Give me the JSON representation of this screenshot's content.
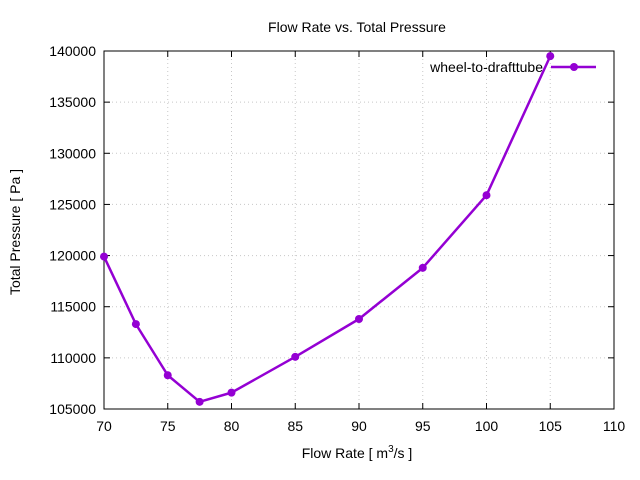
{
  "chart_data": {
    "type": "line",
    "title": "Flow Rate vs. Total Pressure",
    "xlabel": "Flow Rate [ m³/s ]",
    "xlabel_parts": {
      "prefix": "Flow Rate [ m",
      "sup": "3",
      "suffix": "/s ]"
    },
    "ylabel": "Total Pressure [ Pa ]",
    "xlim": [
      70,
      110
    ],
    "ylim": [
      105000,
      140000
    ],
    "xticks": [
      70,
      75,
      80,
      85,
      90,
      95,
      100,
      105,
      110
    ],
    "yticks": [
      105000,
      110000,
      115000,
      120000,
      125000,
      130000,
      135000,
      140000
    ],
    "grid": true,
    "legend_position": "top-right",
    "series": [
      {
        "name": "wheel-to-drafttube",
        "color": "#9400d3",
        "marker": "circle",
        "x": [
          70,
          72.5,
          75,
          77.5,
          80,
          85,
          90,
          95,
          100,
          105
        ],
        "y": [
          119900,
          113300,
          108300,
          105700,
          106600,
          110100,
          113800,
          118800,
          125900,
          139500
        ]
      }
    ]
  }
}
